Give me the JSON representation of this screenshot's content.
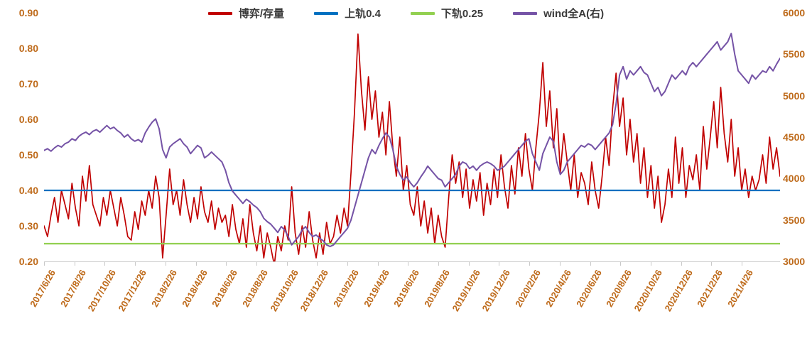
{
  "chart_data": {
    "type": "line",
    "title": "",
    "legend_position": "top-center",
    "background": "#FFFFFF",
    "axis_label_color": "#BE6A1A",
    "grid": false,
    "x_labels": [
      "2017/6/26",
      "2017/8/26",
      "2017/10/26",
      "2017/12/26",
      "2018/2/26",
      "2018/4/26",
      "2018/6/26",
      "2018/8/26",
      "2018/10/26",
      "2018/12/26",
      "2019/2/26",
      "2019/4/26",
      "2019/6/26",
      "2019/8/26",
      "2019/10/26",
      "2019/12/26",
      "2020/2/26",
      "2020/4/26",
      "2020/6/26",
      "2020/8/26",
      "2020/10/26",
      "2020/12/26",
      "2021/2/26",
      "2021/4/26"
    ],
    "left_axis": {
      "min": 0.2,
      "max": 0.9,
      "ticks": [
        "0.90",
        "0.80",
        "0.70",
        "0.60",
        "0.50",
        "0.40",
        "0.30",
        "0.20"
      ]
    },
    "right_axis": {
      "min": 3000,
      "max": 6000,
      "ticks": [
        "6000",
        "5500",
        "5000",
        "4500",
        "4000",
        "3500",
        "3000"
      ]
    },
    "series": [
      {
        "name": "博弈/存量",
        "color": "#C00000",
        "axis": "left",
        "width": 1.7,
        "values": [
          0.3,
          0.27,
          0.33,
          0.38,
          0.31,
          0.4,
          0.36,
          0.32,
          0.42,
          0.35,
          0.3,
          0.44,
          0.37,
          0.47,
          0.36,
          0.33,
          0.3,
          0.38,
          0.33,
          0.4,
          0.35,
          0.3,
          0.38,
          0.33,
          0.27,
          0.26,
          0.34,
          0.29,
          0.37,
          0.33,
          0.4,
          0.35,
          0.44,
          0.38,
          0.21,
          0.33,
          0.46,
          0.36,
          0.4,
          0.33,
          0.43,
          0.36,
          0.31,
          0.38,
          0.32,
          0.41,
          0.34,
          0.31,
          0.37,
          0.29,
          0.35,
          0.31,
          0.33,
          0.27,
          0.36,
          0.29,
          0.25,
          0.32,
          0.24,
          0.36,
          0.28,
          0.23,
          0.3,
          0.21,
          0.28,
          0.24,
          0.19,
          0.27,
          0.23,
          0.3,
          0.26,
          0.41,
          0.28,
          0.22,
          0.3,
          0.24,
          0.34,
          0.26,
          0.21,
          0.28,
          0.22,
          0.31,
          0.25,
          0.27,
          0.33,
          0.28,
          0.35,
          0.3,
          0.45,
          0.62,
          0.84,
          0.68,
          0.57,
          0.72,
          0.6,
          0.68,
          0.55,
          0.62,
          0.5,
          0.65,
          0.52,
          0.44,
          0.55,
          0.4,
          0.47,
          0.36,
          0.33,
          0.41,
          0.3,
          0.37,
          0.28,
          0.35,
          0.25,
          0.33,
          0.27,
          0.24,
          0.38,
          0.5,
          0.42,
          0.48,
          0.38,
          0.46,
          0.35,
          0.43,
          0.37,
          0.45,
          0.33,
          0.42,
          0.36,
          0.46,
          0.38,
          0.5,
          0.41,
          0.35,
          0.47,
          0.39,
          0.52,
          0.44,
          0.56,
          0.46,
          0.4,
          0.52,
          0.62,
          0.76,
          0.58,
          0.68,
          0.52,
          0.63,
          0.45,
          0.56,
          0.48,
          0.4,
          0.5,
          0.38,
          0.45,
          0.42,
          0.36,
          0.48,
          0.4,
          0.35,
          0.44,
          0.55,
          0.47,
          0.63,
          0.73,
          0.58,
          0.66,
          0.5,
          0.6,
          0.48,
          0.56,
          0.42,
          0.52,
          0.38,
          0.47,
          0.35,
          0.44,
          0.31,
          0.36,
          0.46,
          0.38,
          0.55,
          0.42,
          0.52,
          0.38,
          0.47,
          0.43,
          0.5,
          0.4,
          0.58,
          0.46,
          0.55,
          0.65,
          0.52,
          0.69,
          0.56,
          0.48,
          0.6,
          0.44,
          0.52,
          0.4,
          0.46,
          0.38,
          0.44,
          0.4,
          0.43,
          0.5,
          0.42,
          0.55,
          0.46,
          0.52,
          0.44
        ]
      },
      {
        "name": "上轨0.4",
        "color": "#0070C0",
        "axis": "left",
        "width": 2.3,
        "constant": 0.4
      },
      {
        "name": "下轨0.25",
        "color": "#92D050",
        "axis": "left",
        "width": 2.3,
        "constant": 0.25
      },
      {
        "name": "wind全A(右)",
        "color": "#7553A6",
        "axis": "right",
        "width": 2.0,
        "values": [
          4340,
          4360,
          4330,
          4370,
          4400,
          4380,
          4420,
          4440,
          4480,
          4460,
          4510,
          4540,
          4560,
          4530,
          4570,
          4590,
          4560,
          4600,
          4640,
          4600,
          4620,
          4580,
          4550,
          4500,
          4530,
          4480,
          4450,
          4470,
          4440,
          4550,
          4620,
          4680,
          4720,
          4600,
          4350,
          4250,
          4380,
          4420,
          4450,
          4480,
          4420,
          4380,
          4300,
          4350,
          4400,
          4370,
          4250,
          4280,
          4320,
          4280,
          4240,
          4200,
          4100,
          3950,
          3850,
          3800,
          3750,
          3700,
          3750,
          3720,
          3680,
          3650,
          3600,
          3520,
          3480,
          3450,
          3400,
          3350,
          3420,
          3380,
          3300,
          3200,
          3250,
          3300,
          3380,
          3420,
          3350,
          3300,
          3320,
          3280,
          3250,
          3200,
          3180,
          3200,
          3250,
          3300,
          3350,
          3400,
          3500,
          3650,
          3800,
          3950,
          4100,
          4250,
          4350,
          4300,
          4400,
          4480,
          4550,
          4500,
          4350,
          4150,
          4050,
          3980,
          4020,
          3950,
          3900,
          3950,
          4020,
          4080,
          4150,
          4100,
          4050,
          4000,
          3980,
          3900,
          3950,
          4000,
          4050,
          4150,
          4200,
          4180,
          4120,
          4150,
          4100,
          4150,
          4180,
          4200,
          4180,
          4150,
          4100,
          4120,
          4150,
          4200,
          4250,
          4300,
          4350,
          4400,
          4450,
          4480,
          4300,
          4200,
          4100,
          4300,
          4400,
          4500,
          4450,
          4200,
          4050,
          4100,
          4200,
          4250,
          4300,
          4350,
          4400,
          4380,
          4420,
          4400,
          4350,
          4400,
          4450,
          4500,
          4550,
          4650,
          4900,
          5250,
          5350,
          5200,
          5300,
          5250,
          5300,
          5350,
          5280,
          5250,
          5150,
          5050,
          5100,
          5000,
          5050,
          5150,
          5250,
          5200,
          5250,
          5300,
          5250,
          5350,
          5400,
          5350,
          5400,
          5450,
          5500,
          5550,
          5600,
          5650,
          5550,
          5600,
          5650,
          5750,
          5500,
          5300,
          5250,
          5200,
          5150,
          5250,
          5200,
          5250,
          5300,
          5280,
          5350,
          5300,
          5380,
          5450
        ]
      }
    ]
  }
}
